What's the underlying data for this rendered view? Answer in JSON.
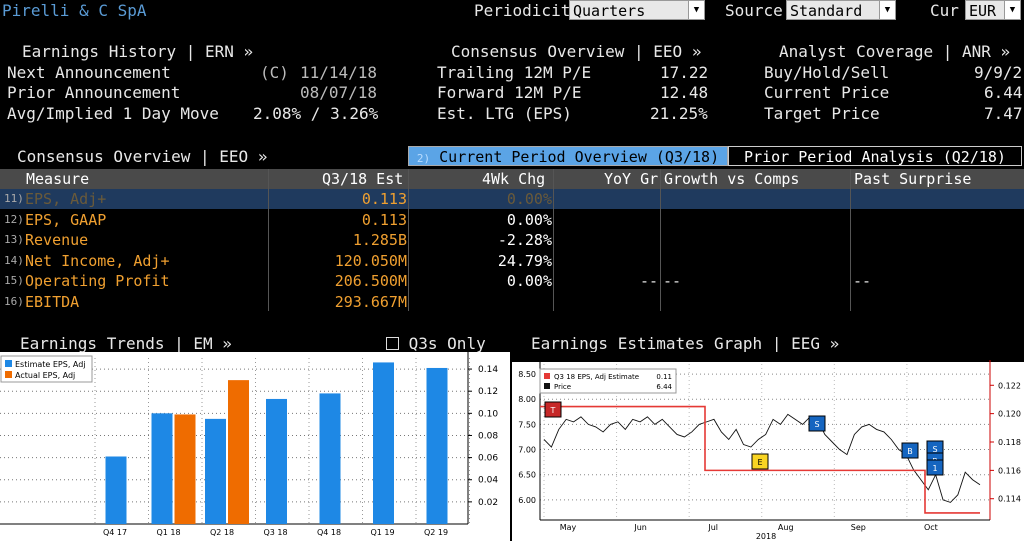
{
  "header": {
    "company": "Pirelli & C SpA",
    "periodicity_label": "Periodicity",
    "periodicity_value": "Quarters",
    "source_label": "Source",
    "source_value": "Standard",
    "cur_label": "Cur",
    "cur_value": "EUR"
  },
  "earnings_history": {
    "title": "Earnings History | ERN »",
    "next_label": "Next Announcement",
    "next_prefix": "(C)",
    "next_value": "11/14/18",
    "prior_label": "Prior Announcement",
    "prior_value": "08/07/18",
    "move_label": "Avg/Implied 1 Day Move",
    "move_value": "2.08% / 3.26%"
  },
  "consensus_top": {
    "title": "Consensus Overview | EEO »",
    "trailing_label": "Trailing 12M P/E",
    "trailing_value": "17.22",
    "forward_label": "Forward 12M P/E",
    "forward_value": "12.48",
    "ltg_label": "Est. LTG (EPS)",
    "ltg_value": "21.25%"
  },
  "analyst": {
    "title": "Analyst Coverage | ANR »",
    "bhs_label": "Buy/Hold/Sell",
    "bhs_value": "9/9/2",
    "price_label": "Current Price",
    "price_value": "6.44",
    "target_label": "Target Price",
    "target_value": "7.47"
  },
  "overview": {
    "title": "Consensus Overview | EEO »",
    "tab_current_num": "2)",
    "tab_current": "Current Period Overview (Q3/18)",
    "tab_prior": "Prior Period Analysis (Q2/18)",
    "columns": [
      "Measure",
      "Q3/18 Est",
      "4Wk Chg",
      "YoY Gr",
      "Growth vs Comps",
      "Past Surprise"
    ],
    "rows": [
      {
        "num": "11)",
        "measure": "EPS, Adj+",
        "est": "0.113",
        "chg": "0.00%",
        "yoy": "",
        "comps": "",
        "surprise": ""
      },
      {
        "num": "12)",
        "measure": "EPS, GAAP",
        "est": "0.113",
        "chg": "0.00%",
        "yoy": "",
        "comps": "",
        "surprise": ""
      },
      {
        "num": "13)",
        "measure": "Revenue",
        "est": "1.285B",
        "chg": "-2.28%",
        "yoy": "",
        "comps": "",
        "surprise": ""
      },
      {
        "num": "14)",
        "measure": "Net Income, Adj+",
        "est": "120.050M",
        "chg": "24.79%",
        "yoy": "",
        "comps": "",
        "surprise": ""
      },
      {
        "num": "15)",
        "measure": "Operating Profit",
        "est": "206.500M",
        "chg": "0.00%",
        "yoy": "--",
        "comps": "--",
        "surprise": "--"
      },
      {
        "num": "16)",
        "measure": "EBITDA",
        "est": "293.667M",
        "chg": "",
        "yoy": "",
        "comps": "",
        "surprise": ""
      }
    ]
  },
  "trends": {
    "title": "Earnings Trends | EM »",
    "q3s_label": "Q3s Only"
  },
  "estimates_graph": {
    "title": "Earnings Estimates Graph | EEG »"
  },
  "colors": {
    "estimate": "#1e88e5",
    "actual": "#ef6c00",
    "accent": "#f0a030",
    "estimate_line": "#e53935"
  },
  "chart_data": [
    {
      "type": "bar",
      "legend": [
        "Estimate EPS, Adj",
        "Actual EPS, Adj"
      ],
      "legend_position": "top-left",
      "categories": [
        "Q4 17",
        "Q1 18",
        "Q2 18",
        "Q3 18",
        "Q4 18",
        "Q1 19",
        "Q2 19"
      ],
      "series": [
        {
          "name": "Estimate EPS, Adj",
          "values": [
            0.061,
            0.1,
            0.095,
            0.113,
            0.118,
            0.146,
            0.141
          ]
        },
        {
          "name": "Actual EPS, Adj",
          "values": [
            null,
            0.099,
            0.13,
            null,
            null,
            null,
            null
          ]
        }
      ],
      "yticks": [
        "0.14",
        "0.12",
        "0.10",
        "0.08",
        "0.06",
        "0.04",
        "0.02"
      ],
      "ylim": [
        0,
        0.15
      ],
      "grid": true
    },
    {
      "type": "line",
      "legend": [
        {
          "label": "Q3 18 EPS, Adj Estimate",
          "value": "0.11"
        },
        {
          "label": "Price",
          "value": "6.44"
        }
      ],
      "legend_position": "top-left",
      "x_labels": [
        "May",
        "Jun",
        "Jul",
        "Aug",
        "Sep",
        "Oct"
      ],
      "x_year_label": "2018",
      "left_axis_ticks": [
        "8.50",
        "8.00",
        "7.50",
        "7.00",
        "6.50",
        "6.00"
      ],
      "right_axis_ticks": [
        "0.122",
        "0.120",
        "0.118",
        "0.116",
        "0.114"
      ],
      "price_ylim": [
        5.6,
        8.7
      ],
      "estimate_ylim": [
        0.1125,
        0.1235
      ],
      "price_series": [
        7.2,
        7.05,
        7.4,
        7.6,
        7.55,
        7.65,
        7.5,
        7.45,
        7.35,
        7.5,
        7.55,
        7.4,
        7.6,
        7.55,
        7.65,
        7.5,
        7.6,
        7.45,
        7.3,
        7.25,
        7.35,
        7.5,
        7.55,
        7.6,
        7.35,
        7.2,
        7.4,
        7.1,
        7.05,
        7.2,
        7.3,
        7.6,
        7.5,
        7.7,
        7.6,
        7.5,
        7.65,
        7.6,
        7.3,
        7.15,
        7.0,
        6.9,
        7.3,
        7.45,
        7.5,
        7.4,
        7.35,
        7.2,
        7.0,
        6.9,
        6.6,
        6.4,
        6.2,
        6.5,
        6.0,
        5.95,
        6.1,
        6.55,
        6.4,
        6.3
      ],
      "estimate_series": [
        0.1205,
        0.1205,
        0.1205,
        0.1205,
        0.1205,
        0.1205,
        0.116,
        0.116,
        0.116,
        0.116,
        0.116,
        0.116,
        0.116,
        0.116,
        0.113,
        0.113,
        0.113
      ],
      "markers": [
        {
          "label": "T"
        },
        {
          "label": "E"
        },
        {
          "label": "S"
        },
        {
          "label": "B"
        },
        {
          "label": "S"
        },
        {
          "label": "B"
        },
        {
          "label": "1"
        }
      ]
    }
  ]
}
